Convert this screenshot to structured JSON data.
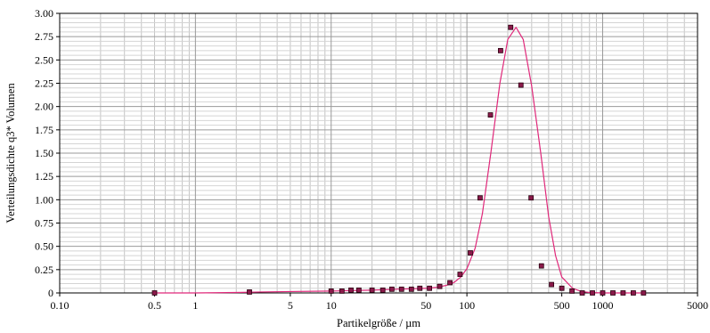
{
  "chart_data": {
    "type": "line",
    "title": "",
    "xlabel": "Partikelgröße / µm",
    "ylabel": "Verteilungsdichte q3* Volumen",
    "xscale": "log",
    "xlim": [
      0.1,
      5000
    ],
    "ylim": [
      0,
      3.0
    ],
    "grid": true,
    "legend": "none",
    "x_ticks": [
      {
        "v": 0.1,
        "label": "0.10"
      },
      {
        "v": 0.5,
        "label": "0.5"
      },
      {
        "v": 1,
        "label": "1"
      },
      {
        "v": 5,
        "label": "5"
      },
      {
        "v": 10,
        "label": "10"
      },
      {
        "v": 50,
        "label": "50"
      },
      {
        "v": 100,
        "label": "100"
      },
      {
        "v": 500,
        "label": "500"
      },
      {
        "v": 1000,
        "label": "1000"
      },
      {
        "v": 5000,
        "label": "5000"
      }
    ],
    "y_ticks": [
      {
        "v": 0,
        "label": "0"
      },
      {
        "v": 0.25,
        "label": "0.25"
      },
      {
        "v": 0.5,
        "label": "0.50"
      },
      {
        "v": 0.75,
        "label": "0.75"
      },
      {
        "v": 1.0,
        "label": "1.00"
      },
      {
        "v": 1.25,
        "label": "1.25"
      },
      {
        "v": 1.5,
        "label": "1.50"
      },
      {
        "v": 1.75,
        "label": "1.75"
      },
      {
        "v": 2.0,
        "label": "2.00"
      },
      {
        "v": 2.25,
        "label": "2.25"
      },
      {
        "v": 2.5,
        "label": "2.50"
      },
      {
        "v": 2.75,
        "label": "2.75"
      },
      {
        "v": 3.0,
        "label": "3.00"
      }
    ],
    "series": [
      {
        "color": "#e0287a",
        "x": [
          0.5,
          1,
          2,
          3,
          5,
          10,
          20,
          30,
          40,
          50,
          60,
          70,
          80,
          90,
          100,
          115,
          130,
          150,
          175,
          200,
          230,
          260,
          300,
          350,
          400,
          450,
          500,
          600,
          700,
          800,
          1000,
          1500,
          2000
        ],
        "y": [
          0.0,
          0.0,
          0.005,
          0.01,
          0.015,
          0.02,
          0.03,
          0.04,
          0.045,
          0.05,
          0.06,
          0.08,
          0.11,
          0.17,
          0.26,
          0.48,
          0.85,
          1.5,
          2.25,
          2.72,
          2.85,
          2.72,
          2.22,
          1.5,
          0.82,
          0.4,
          0.17,
          0.05,
          0.015,
          0.005,
          0.0,
          0.0,
          0.0
        ]
      },
      {
        "color": "#8a1a4a",
        "marker": "square",
        "x": [
          0.5,
          2.5,
          10,
          12,
          14,
          16,
          20,
          24,
          28,
          33,
          39,
          45,
          53,
          63,
          75,
          89,
          106,
          125,
          149,
          177,
          210,
          250,
          297,
          354,
          420,
          500,
          595,
          707,
          841,
          1000,
          1190,
          1414,
          1682,
          2000
        ],
        "y": [
          0.0,
          0.01,
          0.02,
          0.02,
          0.03,
          0.03,
          0.03,
          0.03,
          0.04,
          0.04,
          0.04,
          0.05,
          0.05,
          0.07,
          0.11,
          0.2,
          0.43,
          1.02,
          1.91,
          2.6,
          2.85,
          2.23,
          1.02,
          0.29,
          0.09,
          0.05,
          0.02,
          0.0,
          0.0,
          0.0,
          0.0,
          0.0,
          0.0,
          0.0
        ]
      }
    ]
  }
}
